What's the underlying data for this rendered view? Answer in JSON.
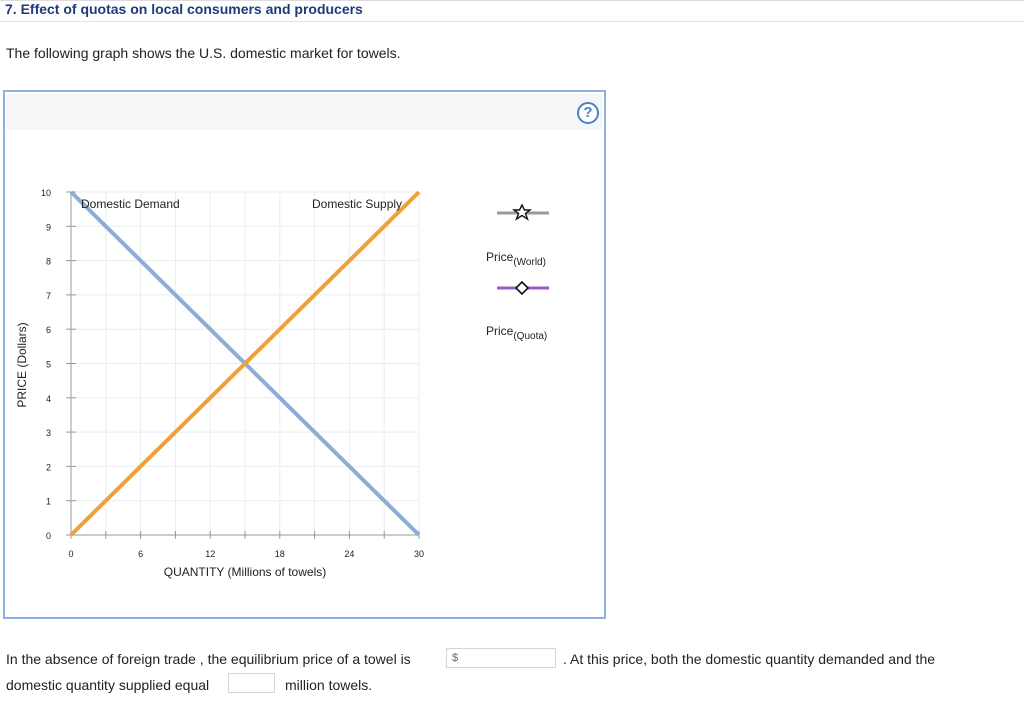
{
  "question": {
    "title": "7. Effect of quotas on local consumers and producers",
    "intro": "The following graph shows the U.S. domestic market for towels."
  },
  "graph": {
    "help_label": "?",
    "legend": [
      {
        "label": "Price",
        "subscript": "(World)",
        "color": "#999999",
        "marker": "star-icon"
      },
      {
        "label": "Price",
        "subscript": "(Quota)",
        "color": "#9b59d0",
        "marker": "diamond-icon"
      }
    ]
  },
  "chart_data": {
    "type": "line",
    "title": "",
    "xlabel": "QUANTITY (Millions of towels)",
    "ylabel": "PRICE (Dollars)",
    "xlim": [
      0,
      30
    ],
    "ylim": [
      0,
      10
    ],
    "x_ticks": [
      0,
      6,
      12,
      18,
      24,
      30
    ],
    "y_ticks": [
      0,
      1,
      2,
      3,
      4,
      5,
      6,
      7,
      8,
      9,
      10
    ],
    "grid": true,
    "series": [
      {
        "name": "Domestic Demand",
        "color": "#8aaed4",
        "points": [
          [
            0,
            10
          ],
          [
            30,
            0
          ]
        ]
      },
      {
        "name": "Domestic Supply",
        "color": "#f0a03a",
        "points": [
          [
            0,
            0
          ],
          [
            30,
            10
          ]
        ]
      }
    ]
  },
  "question_text": {
    "part1": "In the absence of foreign trade , the equilibrium price of a towel is",
    "currency": "$",
    "part2": ". At this price, both the domestic quantity demanded and the",
    "part3": "domestic quantity supplied equal",
    "part4": "million towels.",
    "price_answer": "",
    "quantity_answer": ""
  }
}
